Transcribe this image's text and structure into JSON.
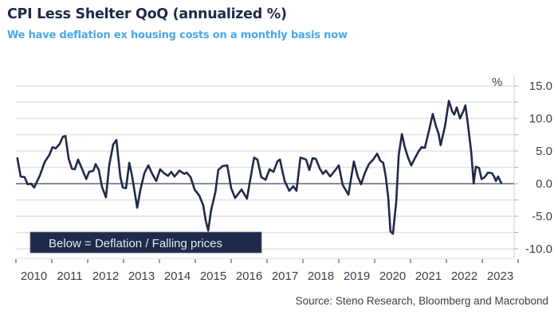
{
  "chart_data": {
    "type": "line",
    "title": "CPI Less Shelter QoQ (annualized %)",
    "subtitle": "We have deflation ex housing costs on a monthly basis now",
    "ylabel": "%",
    "xlabel": "",
    "ylim": [
      -11,
      16.5
    ],
    "yticks": [
      15.0,
      10.0,
      5.0,
      0.0,
      -5.0,
      -10.0
    ],
    "ytick_labels": [
      "15.0",
      "10.0",
      "5.0",
      "0.0",
      "-5.0",
      "-10.0"
    ],
    "xlim": [
      2010,
      2023.9
    ],
    "xtick_labels": [
      "2010",
      "2011",
      "2012",
      "2013",
      "2014",
      "2015",
      "2016",
      "2017",
      "2018",
      "2019",
      "2020",
      "2021",
      "2022",
      "2023"
    ],
    "grid": true,
    "annotation": "Below = Deflation / Falling prices",
    "source": "Source: Steno Research, Bloomberg and Macrobond",
    "line_color": "#1f2a4a",
    "subtitle_color": "#49a8e8",
    "series": [
      {
        "name": "CPI Less Shelter QoQ (annualized %)",
        "points": [
          [
            2010.04,
            3.9
          ],
          [
            2010.13,
            1.1
          ],
          [
            2010.24,
            1.0
          ],
          [
            2010.33,
            -0.1
          ],
          [
            2010.42,
            0.0
          ],
          [
            2010.51,
            -0.6
          ],
          [
            2010.67,
            1.3
          ],
          [
            2010.8,
            3.3
          ],
          [
            2010.93,
            4.4
          ],
          [
            2011.02,
            5.6
          ],
          [
            2011.11,
            5.4
          ],
          [
            2011.22,
            6.1
          ],
          [
            2011.31,
            7.2
          ],
          [
            2011.38,
            7.3
          ],
          [
            2011.47,
            3.8
          ],
          [
            2011.56,
            2.3
          ],
          [
            2011.64,
            2.2
          ],
          [
            2011.73,
            3.7
          ],
          [
            2011.84,
            2.3
          ],
          [
            2011.96,
            0.7
          ],
          [
            2012.04,
            1.8
          ],
          [
            2012.16,
            2.0
          ],
          [
            2012.22,
            3.0
          ],
          [
            2012.31,
            2.1
          ],
          [
            2012.4,
            -0.5
          ],
          [
            2012.51,
            -2.1
          ],
          [
            2012.6,
            2.8
          ],
          [
            2012.71,
            6.0
          ],
          [
            2012.8,
            6.7
          ],
          [
            2012.91,
            1.0
          ],
          [
            2012.98,
            -0.6
          ],
          [
            2013.07,
            -0.7
          ],
          [
            2013.16,
            3.2
          ],
          [
            2013.24,
            1.1
          ],
          [
            2013.38,
            -3.7
          ],
          [
            2013.47,
            -0.9
          ],
          [
            2013.58,
            1.6
          ],
          [
            2013.69,
            2.8
          ],
          [
            2013.8,
            1.5
          ],
          [
            2013.91,
            0.4
          ],
          [
            2014.02,
            2.2
          ],
          [
            2014.13,
            1.6
          ],
          [
            2014.24,
            1.2
          ],
          [
            2014.33,
            1.8
          ],
          [
            2014.42,
            1.1
          ],
          [
            2014.56,
            2.0
          ],
          [
            2014.69,
            1.5
          ],
          [
            2014.76,
            1.7
          ],
          [
            2014.87,
            1.0
          ],
          [
            2014.98,
            -0.9
          ],
          [
            2015.11,
            -1.8
          ],
          [
            2015.22,
            -3.3
          ],
          [
            2015.29,
            -5.6
          ],
          [
            2015.36,
            -7.2
          ],
          [
            2015.44,
            -4.1
          ],
          [
            2015.56,
            -1.3
          ],
          [
            2015.64,
            2.1
          ],
          [
            2015.76,
            2.7
          ],
          [
            2015.89,
            2.8
          ],
          [
            2016.0,
            -0.7
          ],
          [
            2016.11,
            -2.2
          ],
          [
            2016.18,
            -1.7
          ],
          [
            2016.29,
            -0.9
          ],
          [
            2016.44,
            -2.3
          ],
          [
            2016.56,
            1.5
          ],
          [
            2016.64,
            4.0
          ],
          [
            2016.73,
            3.7
          ],
          [
            2016.84,
            1.0
          ],
          [
            2016.96,
            0.6
          ],
          [
            2017.07,
            2.2
          ],
          [
            2017.18,
            1.8
          ],
          [
            2017.29,
            3.4
          ],
          [
            2017.36,
            3.7
          ],
          [
            2017.42,
            2.1
          ],
          [
            2017.49,
            0.4
          ],
          [
            2017.62,
            -1.1
          ],
          [
            2017.73,
            -0.4
          ],
          [
            2017.82,
            -1.1
          ],
          [
            2017.93,
            4.0
          ],
          [
            2018.09,
            3.7
          ],
          [
            2018.18,
            2.1
          ],
          [
            2018.27,
            3.9
          ],
          [
            2018.36,
            3.8
          ],
          [
            2018.47,
            2.3
          ],
          [
            2018.56,
            1.5
          ],
          [
            2018.64,
            2.0
          ],
          [
            2018.76,
            1.1
          ],
          [
            2018.89,
            2.0
          ],
          [
            2019.0,
            2.8
          ],
          [
            2019.11,
            -0.2
          ],
          [
            2019.27,
            -1.7
          ],
          [
            2019.42,
            3.4
          ],
          [
            2019.53,
            1.1
          ],
          [
            2019.62,
            -0.1
          ],
          [
            2019.73,
            1.7
          ],
          [
            2019.84,
            3.0
          ],
          [
            2019.96,
            3.7
          ],
          [
            2020.07,
            4.6
          ],
          [
            2020.16,
            3.5
          ],
          [
            2020.24,
            3.2
          ],
          [
            2020.31,
            1.1
          ],
          [
            2020.38,
            -2.2
          ],
          [
            2020.44,
            -7.3
          ],
          [
            2020.51,
            -7.7
          ],
          [
            2020.6,
            -2.9
          ],
          [
            2020.67,
            4.4
          ],
          [
            2020.76,
            7.6
          ],
          [
            2020.84,
            5.6
          ],
          [
            2020.93,
            4.0
          ],
          [
            2021.02,
            2.8
          ],
          [
            2021.13,
            4.0
          ],
          [
            2021.22,
            4.9
          ],
          [
            2021.31,
            5.6
          ],
          [
            2021.4,
            5.5
          ],
          [
            2021.51,
            8.0
          ],
          [
            2021.62,
            10.7
          ],
          [
            2021.71,
            8.8
          ],
          [
            2021.78,
            7.7
          ],
          [
            2021.84,
            5.9
          ],
          [
            2021.96,
            8.8
          ],
          [
            2022.07,
            12.7
          ],
          [
            2022.16,
            11.1
          ],
          [
            2022.22,
            10.6
          ],
          [
            2022.29,
            11.7
          ],
          [
            2022.38,
            10.0
          ],
          [
            2022.47,
            11.1
          ],
          [
            2022.53,
            12.0
          ],
          [
            2022.6,
            9.1
          ],
          [
            2022.69,
            4.9
          ],
          [
            2022.76,
            0.0
          ],
          [
            2022.82,
            2.6
          ],
          [
            2022.91,
            2.4
          ],
          [
            2022.98,
            0.7
          ],
          [
            2023.07,
            1.0
          ],
          [
            2023.16,
            1.7
          ],
          [
            2023.27,
            1.6
          ],
          [
            2023.33,
            1.1
          ],
          [
            2023.38,
            0.4
          ],
          [
            2023.44,
            1.1
          ],
          [
            2023.53,
            0.1
          ]
        ]
      }
    ]
  }
}
